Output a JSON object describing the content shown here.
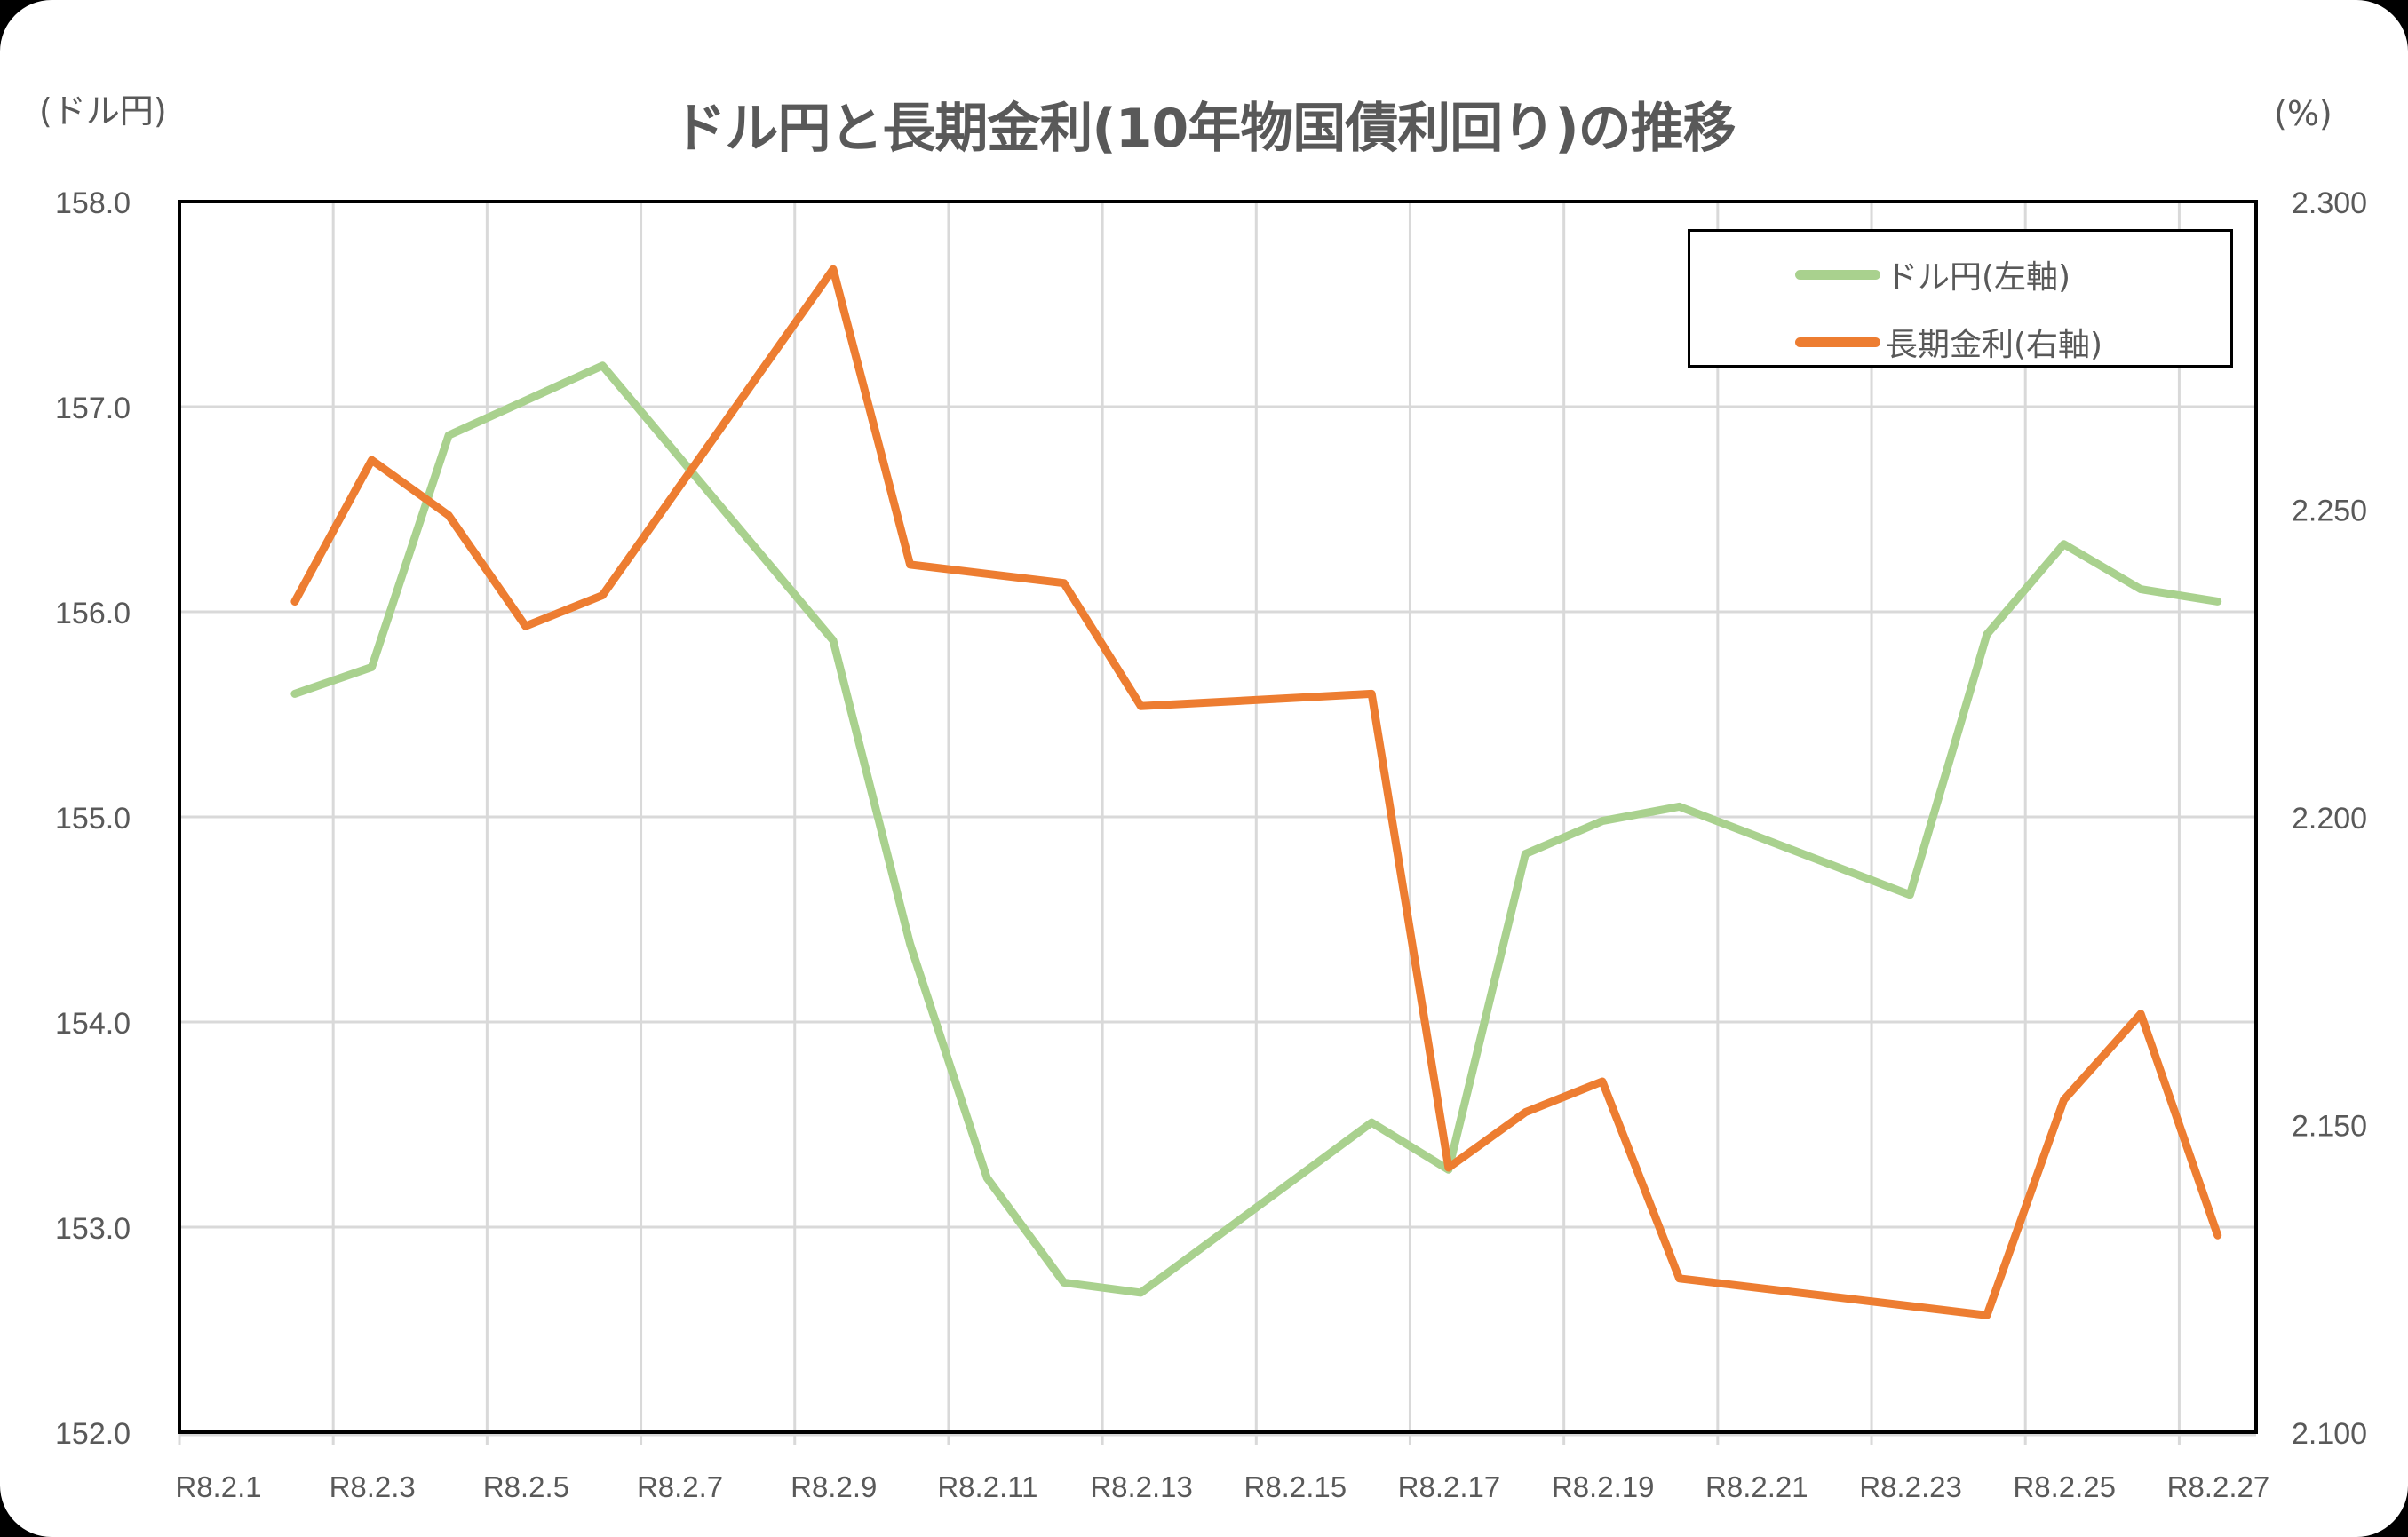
{
  "chart": {
    "title": "ドル円と長期金利(10年物国債利回り)の推移",
    "left_unit": "(ドル円)",
    "right_unit": "(%)",
    "background_outer": "#000000",
    "background_card": "#ffffff",
    "grid_color": "#d9d9d9",
    "text_color": "#595959"
  },
  "legend": {
    "items": [
      {
        "label": "ドル円(左軸)",
        "color": "#a9d18e"
      },
      {
        "label": "長期金利(右軸)",
        "color": "#ed7d31"
      }
    ]
  },
  "chart_data": {
    "type": "line",
    "title": "ドル円と長期金利(10年物国債利回り)の推移",
    "xlabel": "",
    "ylabel": "(ドル円)",
    "y2label": "(%)",
    "x_tick_labels": [
      "R8.2.1",
      "R8.2.3",
      "R8.2.5",
      "R8.2.7",
      "R8.2.9",
      "R8.2.11",
      "R8.2.13",
      "R8.2.15",
      "R8.2.17",
      "R8.2.19",
      "R8.2.21",
      "R8.2.23",
      "R8.2.25",
      "R8.2.27"
    ],
    "x_range_days": [
      1,
      28
    ],
    "ylim": [
      152.0,
      158.0
    ],
    "yticks": [
      "158.0",
      "157.0",
      "156.0",
      "155.0",
      "154.0",
      "153.0",
      "152.0"
    ],
    "y2lim": [
      2.1,
      2.3
    ],
    "y2ticks": [
      "2.300",
      "2.250",
      "2.200",
      "2.150",
      "2.100"
    ],
    "grid": true,
    "legend_position": "upper right (inside plot)",
    "series": [
      {
        "name": "ドル円(左軸)",
        "axis": "left",
        "color": "#a9d18e",
        "points": [
          {
            "date": "R8.2.2",
            "day": 2,
            "value": 155.6
          },
          {
            "date": "R8.2.3",
            "day": 3,
            "value": 155.73
          },
          {
            "date": "R8.2.4",
            "day": 4,
            "value": 156.86
          },
          {
            "date": "R8.2.5",
            "day": 5,
            "value": 157.03
          },
          {
            "date": "R8.2.6",
            "day": 6,
            "value": 157.2
          },
          {
            "date": "R8.2.9",
            "day": 9,
            "value": 155.86
          },
          {
            "date": "R8.2.10",
            "day": 10,
            "value": 154.38
          },
          {
            "date": "R8.2.11",
            "day": 11,
            "value": 153.24
          },
          {
            "date": "R8.2.12",
            "day": 12,
            "value": 152.73
          },
          {
            "date": "R8.2.13",
            "day": 13,
            "value": 152.68
          },
          {
            "date": "R8.2.16",
            "day": 16,
            "value": 153.51
          },
          {
            "date": "R8.2.17",
            "day": 17,
            "value": 153.28
          },
          {
            "date": "R8.2.18",
            "day": 18,
            "value": 154.82
          },
          {
            "date": "R8.2.19",
            "day": 19,
            "value": 154.98
          },
          {
            "date": "R8.2.20",
            "day": 20,
            "value": 155.05
          },
          {
            "date": "R8.2.23",
            "day": 23,
            "value": 154.62
          },
          {
            "date": "R8.2.24",
            "day": 24,
            "value": 155.89
          },
          {
            "date": "R8.2.25",
            "day": 25,
            "value": 156.33
          },
          {
            "date": "R8.2.26",
            "day": 26,
            "value": 156.11
          },
          {
            "date": "R8.2.27",
            "day": 27,
            "value": 156.05
          }
        ]
      },
      {
        "name": "長期金利(右軸)",
        "axis": "right",
        "color": "#ed7d31",
        "points": [
          {
            "date": "R8.2.2",
            "day": 2,
            "value": 2.235
          },
          {
            "date": "R8.2.3",
            "day": 3,
            "value": 2.258
          },
          {
            "date": "R8.2.4",
            "day": 4,
            "value": 2.249
          },
          {
            "date": "R8.2.5",
            "day": 5,
            "value": 2.231
          },
          {
            "date": "R8.2.6",
            "day": 6,
            "value": 2.236
          },
          {
            "date": "R8.2.9",
            "day": 9,
            "value": 2.289
          },
          {
            "date": "R8.2.10",
            "day": 10,
            "value": 2.241
          },
          {
            "date": "R8.2.12",
            "day": 12,
            "value": 2.238
          },
          {
            "date": "R8.2.13",
            "day": 13,
            "value": 2.218
          },
          {
            "date": "R8.2.16",
            "day": 16,
            "value": 2.22
          },
          {
            "date": "R8.2.17",
            "day": 17,
            "value": 2.143
          },
          {
            "date": "R8.2.18",
            "day": 18,
            "value": 2.152
          },
          {
            "date": "R8.2.19",
            "day": 19,
            "value": 2.157
          },
          {
            "date": "R8.2.20",
            "day": 20,
            "value": 2.125
          },
          {
            "date": "R8.2.24",
            "day": 24,
            "value": 2.119
          },
          {
            "date": "R8.2.25",
            "day": 25,
            "value": 2.154
          },
          {
            "date": "R8.2.26",
            "day": 26,
            "value": 2.168
          },
          {
            "date": "R8.2.27",
            "day": 27,
            "value": 2.132
          }
        ]
      }
    ]
  }
}
